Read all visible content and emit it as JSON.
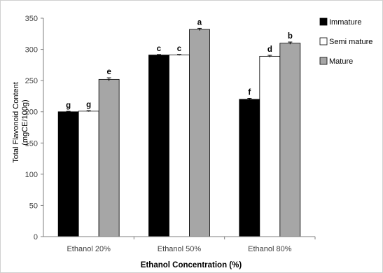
{
  "chart_data": {
    "type": "bar",
    "title": "",
    "xlabel": "Ethanol Concentration (%)",
    "ylabel_lines": [
      "Total Flavonoid Content",
      "(mgCE/100g)"
    ],
    "ylim": [
      0,
      350
    ],
    "yticks": [
      0,
      50,
      100,
      150,
      200,
      250,
      300,
      350
    ],
    "grid": false,
    "legend_position": "right",
    "categories": [
      "Ethanol 20%",
      "Ethanol 50%",
      "Ethanol 80%"
    ],
    "series": [
      {
        "name": "Immature",
        "color": "#000000",
        "values": [
          200,
          291,
          220
        ],
        "errors": [
          0.8,
          0.8,
          1.5
        ],
        "labels": [
          "g",
          "c",
          "f"
        ]
      },
      {
        "name": "Semi mature",
        "color": "#ffffff",
        "values": [
          201,
          291,
          289
        ],
        "errors": [
          0.8,
          0.8,
          1.5
        ],
        "labels": [
          "g",
          "c",
          "d"
        ]
      },
      {
        "name": "Mature",
        "color": "#a6a6a6",
        "values": [
          252,
          332,
          310
        ],
        "errors": [
          2.5,
          1.8,
          1.8
        ],
        "labels": [
          "e",
          "a",
          "b"
        ]
      }
    ]
  }
}
